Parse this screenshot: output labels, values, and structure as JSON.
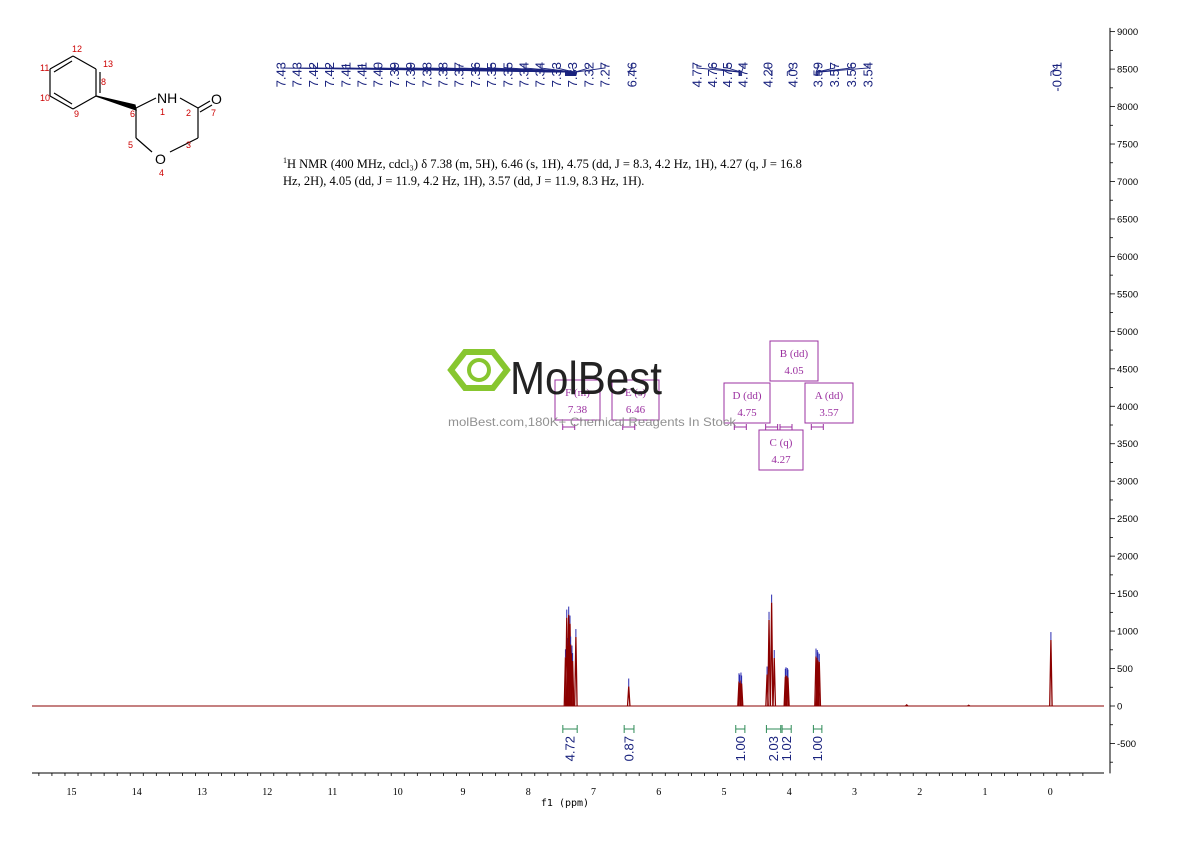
{
  "description": {
    "line1_sup": "1",
    "line1": "H NMR (400 MHz, cdcl₃) δ 7.38 (m, 5H), 6.46 (s, 1H), 4.75 (dd, J = 8.3, 4.2 Hz, 1H), 4.27 (q, J = 16.8",
    "line2": "Hz, 2H), 4.05 (dd, J = 11.9, 4.2 Hz, 1H), 3.57 (dd, J = 11.9, 8.3 Hz, 1H)."
  },
  "watermark": {
    "brand": "MolBest",
    "tagline": "molBest.com,180K+ Chemical Reagents In Stock"
  },
  "structure": {
    "atoms": [
      {
        "label": "NH",
        "num": "1"
      },
      {
        "label": "",
        "num": "2"
      },
      {
        "label": "",
        "num": "3"
      },
      {
        "label": "O",
        "num": "4"
      },
      {
        "label": "",
        "num": "5"
      },
      {
        "label": "",
        "num": "6"
      },
      {
        "label": "O",
        "num": "7"
      },
      {
        "label": "",
        "num": "8"
      },
      {
        "label": "",
        "num": "9"
      },
      {
        "label": "",
        "num": "10"
      },
      {
        "label": "",
        "num": "11"
      },
      {
        "label": "",
        "num": "12"
      },
      {
        "label": "",
        "num": "13"
      }
    ]
  },
  "colors": {
    "spectrum": "#8b0000",
    "peak_label": "#1a237e",
    "integral": "#2e8b57",
    "multiplet_box": "#9b30a0",
    "atom_number": "#cc0000",
    "watermark_green": "#7dc21e"
  },
  "chart_data": {
    "type": "line",
    "xlabel": "f1 (ppm)",
    "xlim": [
      15.5,
      -0.75
    ],
    "ylim": [
      -900,
      9050
    ],
    "x_ticks": [
      "15",
      "14",
      "13",
      "12",
      "11",
      "10",
      "9",
      "8",
      "7",
      "6",
      "5",
      "4",
      "3",
      "2",
      "1",
      "0"
    ],
    "y_ticks": [
      "9000",
      "8500",
      "8000",
      "7500",
      "7000",
      "6500",
      "6000",
      "5500",
      "5000",
      "4500",
      "4000",
      "3500",
      "3000",
      "2500",
      "2000",
      "1500",
      "1000",
      "500",
      "0",
      "-500"
    ],
    "peak_labels": [
      {
        "group": "aromatic",
        "values": [
          "7.43",
          "7.43",
          "7.42",
          "7.42",
          "7.41",
          "7.41",
          "7.40",
          "7.39",
          "7.39",
          "7.38",
          "7.38",
          "7.37",
          "7.36",
          "7.35",
          "7.35",
          "7.34",
          "7.34",
          "7.33",
          "7.33",
          "7.32",
          "7.27"
        ]
      },
      {
        "group": "nh",
        "values": [
          "6.46"
        ]
      },
      {
        "group": "ch",
        "values": [
          "4.77",
          "4.76",
          "4.75",
          "4.74"
        ]
      },
      {
        "group": "ch2",
        "values": [
          "4.20",
          "4.03"
        ]
      },
      {
        "group": "och2",
        "values": [
          "3.59",
          "3.57",
          "3.56",
          "3.54"
        ]
      },
      {
        "group": "ref",
        "values": [
          "-0.01"
        ]
      }
    ],
    "multiplets": [
      {
        "id": "F",
        "type": "(m)",
        "shift": "7.38",
        "label": "F (m)"
      },
      {
        "id": "E",
        "type": "(s)",
        "shift": "6.46",
        "label": "E (s)"
      },
      {
        "id": "D",
        "type": "(dd)",
        "shift": "4.75",
        "label": "D (dd)"
      },
      {
        "id": "B",
        "type": "(dd)",
        "shift": "4.05",
        "label": "B (dd)"
      },
      {
        "id": "C",
        "type": "(q)",
        "shift": "4.27",
        "label": "C (q)"
      },
      {
        "id": "A",
        "type": "(dd)",
        "shift": "3.57",
        "label": "A (dd)"
      }
    ],
    "integrals": [
      {
        "value": "4.72",
        "from": 7.47,
        "to": 7.25
      },
      {
        "value": "0.87",
        "from": 6.53,
        "to": 6.38
      },
      {
        "value": "1.00",
        "from": 4.82,
        "to": 4.68
      },
      {
        "value": "2.03",
        "from": 4.35,
        "to": 4.13
      },
      {
        "value": "1.02",
        "from": 4.11,
        "to": 3.97
      },
      {
        "value": "1.00",
        "from": 3.63,
        "to": 3.5
      }
    ],
    "peaks": [
      {
        "ppm": 7.43,
        "height": 650
      },
      {
        "ppm": 7.41,
        "height": 1180
      },
      {
        "ppm": 7.39,
        "height": 800
      },
      {
        "ppm": 7.38,
        "height": 1220
      },
      {
        "ppm": 7.36,
        "height": 1100
      },
      {
        "ppm": 7.35,
        "height": 820
      },
      {
        "ppm": 7.33,
        "height": 700
      },
      {
        "ppm": 7.32,
        "height": 600
      },
      {
        "ppm": 7.27,
        "height": 920
      },
      {
        "ppm": 6.46,
        "height": 260
      },
      {
        "ppm": 4.77,
        "height": 330
      },
      {
        "ppm": 4.76,
        "height": 310
      },
      {
        "ppm": 4.74,
        "height": 340
      },
      {
        "ppm": 4.73,
        "height": 300
      },
      {
        "ppm": 4.34,
        "height": 420
      },
      {
        "ppm": 4.31,
        "height": 1150
      },
      {
        "ppm": 4.27,
        "height": 1380
      },
      {
        "ppm": 4.23,
        "height": 640
      },
      {
        "ppm": 4.06,
        "height": 390
      },
      {
        "ppm": 4.05,
        "height": 410
      },
      {
        "ppm": 4.03,
        "height": 400
      },
      {
        "ppm": 4.02,
        "height": 380
      },
      {
        "ppm": 3.59,
        "height": 660
      },
      {
        "ppm": 3.57,
        "height": 640
      },
      {
        "ppm": 3.56,
        "height": 610
      },
      {
        "ppm": 3.54,
        "height": 590
      },
      {
        "ppm": 2.2,
        "height": 15
      },
      {
        "ppm": 1.25,
        "height": 10
      },
      {
        "ppm": -0.01,
        "height": 880
      }
    ]
  }
}
